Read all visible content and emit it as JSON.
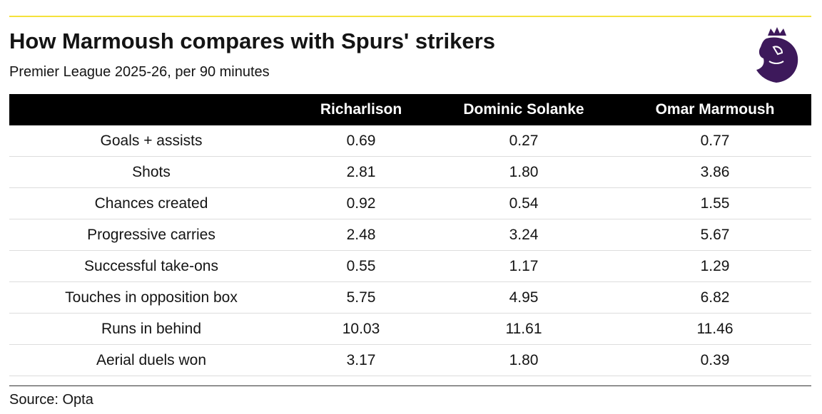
{
  "header": {
    "title": "How Marmoush compares with Spurs' strikers",
    "subtitle": "Premier League 2025-26, per 90 minutes"
  },
  "table": {
    "columns": [
      "Richarlison",
      "Dominic Solanke",
      "Omar Marmoush"
    ],
    "rows": [
      [
        "Goals + assists",
        "0.69",
        "0.27",
        "0.77"
      ],
      [
        "Shots",
        "2.81",
        "1.80",
        "3.86"
      ],
      [
        "Chances created",
        "0.92",
        "0.54",
        "1.55"
      ],
      [
        "Progressive carries",
        "2.48",
        "3.24",
        "5.67"
      ],
      [
        "Successful take-ons",
        "0.55",
        "1.17",
        "1.29"
      ],
      [
        "Touches in opposition box",
        "5.75",
        "4.95",
        "6.82"
      ],
      [
        "Runs in behind",
        "10.03",
        "11.61",
        "11.46"
      ],
      [
        "Aerial duels won",
        "3.17",
        "1.80",
        "0.39"
      ]
    ]
  },
  "footer": {
    "source": "Source: Opta"
  }
}
